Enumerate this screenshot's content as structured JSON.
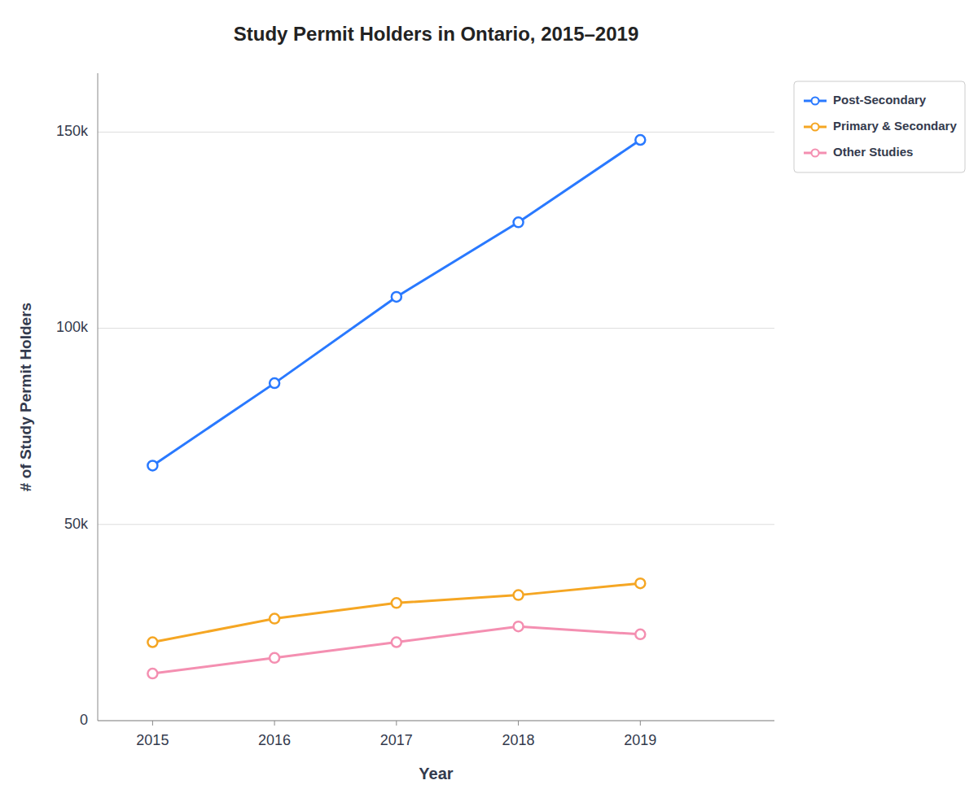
{
  "chart_data": {
    "type": "line",
    "title": "Study Permit Holders in Ontario, 2015–2019",
    "xlabel": "Year",
    "ylabel": "# of Study Permit Holders",
    "x": [
      2015,
      2016,
      2017,
      2018,
      2019
    ],
    "series": [
      {
        "name": "Post-Secondary",
        "color": "#2979ff",
        "marker": "circle",
        "values": [
          65000,
          86000,
          108000,
          127000,
          148000
        ]
      },
      {
        "name": "Primary & Secondary",
        "color": "#f5a623",
        "marker": "circle",
        "values": [
          20000,
          26000,
          30000,
          32000,
          35000
        ]
      },
      {
        "name": "Other Studies",
        "color": "#f48fb1",
        "marker": "circle",
        "values": [
          12000,
          16000,
          20000,
          24000,
          22000
        ]
      }
    ],
    "xlim": [
      2014.55,
      2020.1
    ],
    "xticks": [
      2015,
      2016,
      2017,
      2018,
      2019
    ],
    "ylim": [
      0,
      165000
    ],
    "yticks": [
      0,
      {
        "value": 50000,
        "label": "50k"
      },
      {
        "value": 100000,
        "label": "100k"
      },
      {
        "value": 150000,
        "label": "150k"
      }
    ],
    "grid": true,
    "legend": "right"
  }
}
